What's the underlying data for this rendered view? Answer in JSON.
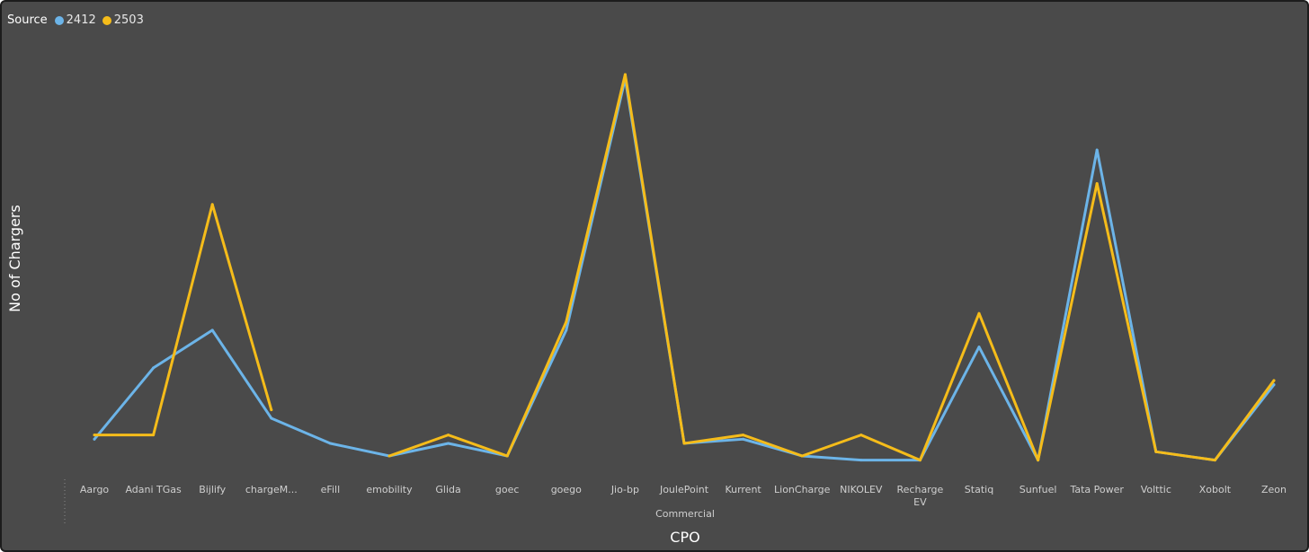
{
  "legend": {
    "title": "Source",
    "items": [
      {
        "label": "2412",
        "color": "#6CB4E8"
      },
      {
        "label": "2503",
        "color": "#F5BC1A"
      }
    ]
  },
  "chart_data": {
    "type": "line",
    "title": "",
    "xlabel": "CPO",
    "ylabel": "No of Chargers",
    "group_label": "Commercial",
    "ylim": [
      0,
      100
    ],
    "grid": false,
    "legend_position": "top-left",
    "categories": [
      "Aargo",
      "Adani TGas",
      "Bijlify",
      "chargeM...",
      "eFill",
      "emobility",
      "Glida",
      "goec",
      "goego",
      "Jio-bp",
      "JoulePoint",
      "Kurrent",
      "LionCharge",
      "NIKOLEV",
      "Recharge EV",
      "Statiq",
      "Sunfuel",
      "Tata Power",
      "Volttic",
      "Xobolt",
      "Zeon"
    ],
    "series": [
      {
        "name": "2412",
        "color": "#6CB4E8",
        "values": [
          7,
          24,
          33,
          12,
          6,
          3,
          6,
          3,
          33,
          93,
          6,
          7,
          3,
          2,
          2,
          29,
          2,
          76,
          4,
          2,
          20
        ]
      },
      {
        "name": "2503",
        "color": "#F5BC1A",
        "values": [
          8,
          8,
          63,
          14,
          null,
          3,
          8,
          3,
          35,
          94,
          6,
          8,
          3,
          8,
          2,
          37,
          2,
          68,
          4,
          2,
          21
        ]
      }
    ]
  }
}
